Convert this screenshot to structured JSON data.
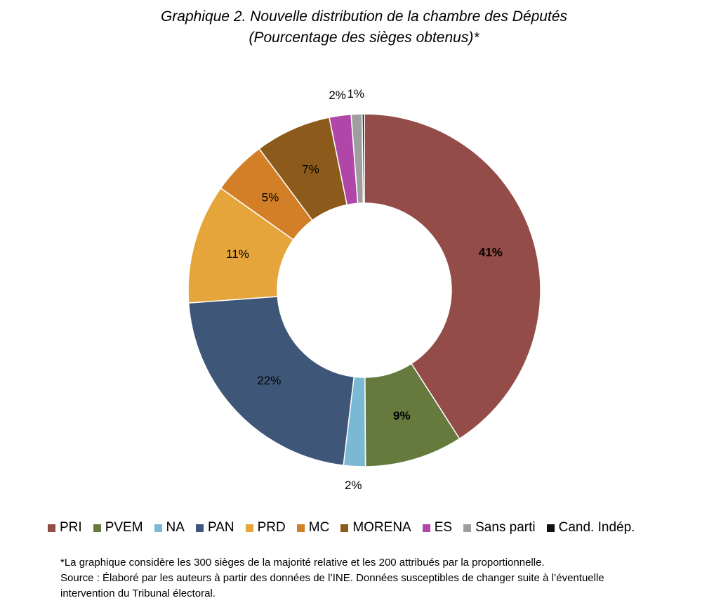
{
  "title_line1": "Graphique 2. Nouvelle distribution de la chambre des Députés",
  "title_line2": "(Pourcentage des sièges obtenus)*",
  "chart_data": {
    "type": "pie",
    "variant": "donut",
    "start_angle_deg": 0,
    "direction": "clockwise",
    "legend_position": "bottom",
    "categories": [
      "PRI",
      "PVEM",
      "NA",
      "PAN",
      "PRD",
      "MC",
      "MORENA",
      "ES",
      "Sans parti",
      "Cand. Indép."
    ],
    "values": [
      41,
      9,
      2,
      22,
      11,
      5,
      7,
      2,
      1,
      0.2
    ],
    "data_labels": [
      "41%",
      "9%",
      "2%",
      "22%",
      "11%",
      "5%",
      "7%",
      "2%",
      "1%",
      ""
    ],
    "label_bold": [
      true,
      true,
      false,
      false,
      false,
      false,
      false,
      false,
      false,
      false
    ],
    "label_outside": [
      false,
      false,
      true,
      false,
      false,
      false,
      false,
      true,
      true,
      false
    ],
    "colors": [
      "#934C47",
      "#667A3E",
      "#7BB8D4",
      "#3E5677",
      "#E5A53A",
      "#D27F27",
      "#8C5A1A",
      "#B046A8",
      "#9E9E9E",
      "#111111"
    ]
  },
  "notes": {
    "line1": "*La graphique considère les 300 sièges de la majorité relative et les 200 attribués par la proportionnelle.",
    "line2": "Source : Élaboré par les auteurs à partir des données de l’INE. Données susceptibles de changer suite à l’éventuelle",
    "line3": "intervention du Tribunal électoral."
  }
}
